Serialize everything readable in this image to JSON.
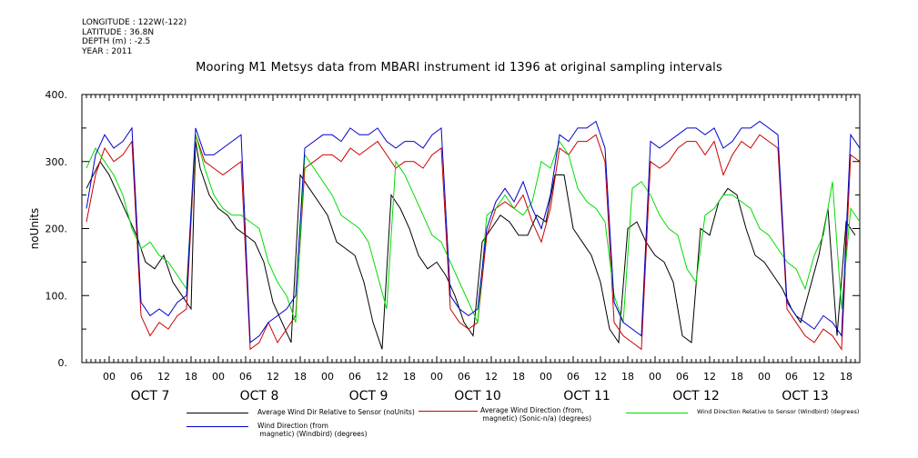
{
  "meta": {
    "longitude": "LONGITUDE : 122W(-122)",
    "latitude": "LATITUDE : 36.8N",
    "depth": "DEPTH (m) : -2.5",
    "year": "YEAR : 2011"
  },
  "chart_data": {
    "type": "line",
    "title": "Mooring M1 Metsys data from MBARI instrument id 1396 at original sampling intervals",
    "ylabel": "noUnits",
    "ylim": [
      0,
      400
    ],
    "yticks": [
      "0.",
      "100.",
      "200.",
      "300.",
      "400."
    ],
    "xlim_hours": [
      -6,
      165
    ],
    "hour_ticks": [
      "00",
      "06",
      "12",
      "18",
      "00",
      "06",
      "12",
      "18",
      "00",
      "06",
      "12",
      "18",
      "00",
      "06",
      "12",
      "18",
      "00",
      "06",
      "12",
      "18",
      "00",
      "06",
      "12",
      "18",
      "00",
      "06",
      "12",
      "18"
    ],
    "day_labels": [
      "OCT  7",
      "OCT  8",
      "OCT  9",
      "OCT 10",
      "OCT 11",
      "OCT 12",
      "OCT 13"
    ],
    "series": [
      {
        "name": "Average Wind Dir Relative to Sensor (noUnits)",
        "color": "#000000",
        "x": [
          -5,
          -2,
          0,
          2,
          4,
          6,
          8,
          10,
          12,
          14,
          16,
          18,
          19,
          20,
          22,
          24,
          26,
          28,
          30,
          32,
          34,
          36,
          38,
          40,
          42,
          44,
          46,
          48,
          50,
          52,
          54,
          56,
          58,
          60,
          62,
          64,
          66,
          68,
          70,
          72,
          74,
          76,
          78,
          80,
          82,
          84,
          86,
          88,
          90,
          92,
          94,
          96,
          98,
          100,
          102,
          104,
          106,
          108,
          110,
          112,
          114,
          116,
          118,
          120,
          122,
          124,
          126,
          128,
          130,
          132,
          134,
          136,
          138,
          140,
          142,
          144,
          146,
          148,
          150,
          152,
          154,
          156,
          158,
          160,
          162,
          164
        ],
        "y": [
          260,
          300,
          280,
          250,
          220,
          190,
          150,
          140,
          160,
          120,
          100,
          80,
          330,
          290,
          250,
          230,
          220,
          200,
          190,
          180,
          150,
          90,
          60,
          30,
          280,
          260,
          240,
          220,
          180,
          170,
          160,
          120,
          60,
          20,
          250,
          230,
          200,
          160,
          140,
          150,
          130,
          100,
          60,
          40,
          180,
          200,
          220,
          210,
          190,
          190,
          220,
          210,
          280,
          280,
          200,
          180,
          160,
          120,
          50,
          30,
          200,
          210,
          180,
          160,
          150,
          120,
          40,
          30,
          200,
          190,
          240,
          260,
          250,
          200,
          160,
          150,
          130,
          110,
          80,
          60,
          110,
          160,
          230,
          40,
          210,
          190
        ]
      },
      {
        "name": "Average Wind Direction (from, magnetic) (Sonic-n/a) (degrees)",
        "color": "#cc0000",
        "x": [
          -5,
          -3,
          -1,
          1,
          3,
          5,
          7,
          9,
          11,
          13,
          15,
          17,
          19,
          21,
          23,
          25,
          27,
          29,
          31,
          33,
          35,
          37,
          39,
          41,
          43,
          45,
          47,
          49,
          51,
          53,
          55,
          57,
          59,
          61,
          63,
          65,
          67,
          69,
          71,
          73,
          75,
          77,
          79,
          81,
          83,
          85,
          87,
          89,
          91,
          93,
          95,
          97,
          99,
          101,
          103,
          105,
          107,
          109,
          111,
          113,
          115,
          117,
          119,
          121,
          123,
          125,
          127,
          129,
          131,
          133,
          135,
          137,
          139,
          141,
          143,
          145,
          147,
          149,
          151,
          153,
          155,
          157,
          159,
          161,
          163,
          165
        ],
        "y": [
          210,
          280,
          320,
          300,
          310,
          330,
          70,
          40,
          60,
          50,
          70,
          80,
          340,
          300,
          290,
          280,
          290,
          300,
          20,
          30,
          60,
          30,
          50,
          70,
          290,
          300,
          310,
          310,
          300,
          320,
          310,
          320,
          330,
          310,
          290,
          300,
          300,
          290,
          310,
          320,
          80,
          60,
          50,
          60,
          190,
          230,
          240,
          230,
          250,
          210,
          180,
          230,
          320,
          310,
          330,
          330,
          340,
          300,
          60,
          40,
          30,
          20,
          300,
          290,
          300,
          320,
          330,
          330,
          310,
          330,
          280,
          310,
          330,
          320,
          340,
          330,
          320,
          80,
          60,
          40,
          30,
          50,
          40,
          20,
          310,
          300
        ]
      },
      {
        "name": "Wind Direction Relative to Sensor (Windbird) (degrees)",
        "color": "#00dd00",
        "x": [
          -5,
          -3,
          -1,
          1,
          3,
          5,
          7,
          9,
          11,
          13,
          15,
          17,
          19,
          21,
          23,
          25,
          27,
          29,
          31,
          33,
          35,
          37,
          39,
          41,
          43,
          45,
          47,
          49,
          51,
          53,
          55,
          57,
          59,
          61,
          63,
          65,
          67,
          69,
          71,
          73,
          75,
          77,
          79,
          81,
          83,
          85,
          87,
          89,
          91,
          93,
          95,
          97,
          99,
          101,
          103,
          105,
          107,
          109,
          111,
          113,
          115,
          117,
          119,
          121,
          123,
          125,
          127,
          129,
          131,
          133,
          135,
          137,
          139,
          141,
          143,
          145,
          147,
          149,
          151,
          153,
          155,
          157,
          159,
          161,
          163,
          165
        ],
        "y": [
          290,
          320,
          300,
          280,
          250,
          200,
          170,
          180,
          160,
          150,
          130,
          110,
          340,
          290,
          250,
          230,
          220,
          220,
          210,
          200,
          150,
          120,
          100,
          60,
          310,
          290,
          270,
          250,
          220,
          210,
          200,
          180,
          130,
          80,
          300,
          280,
          250,
          220,
          190,
          180,
          150,
          120,
          90,
          60,
          220,
          230,
          250,
          230,
          220,
          240,
          300,
          290,
          330,
          310,
          260,
          240,
          230,
          210,
          100,
          60,
          260,
          270,
          250,
          220,
          200,
          190,
          140,
          120,
          220,
          230,
          250,
          250,
          240,
          230,
          200,
          190,
          170,
          150,
          140,
          110,
          160,
          190,
          270,
          80,
          230,
          210
        ]
      },
      {
        "name": "Wind Direction (from, magnetic) (Windbird) (degrees)",
        "color": "#0000cc",
        "x": [
          -5,
          -3,
          -1,
          1,
          3,
          5,
          7,
          9,
          11,
          13,
          15,
          17,
          19,
          21,
          23,
          25,
          27,
          29,
          31,
          33,
          35,
          37,
          39,
          41,
          43,
          45,
          47,
          49,
          51,
          53,
          55,
          57,
          59,
          61,
          63,
          65,
          67,
          69,
          71,
          73,
          75,
          77,
          79,
          81,
          83,
          85,
          87,
          89,
          91,
          93,
          95,
          97,
          99,
          101,
          103,
          105,
          107,
          109,
          111,
          113,
          115,
          117,
          119,
          121,
          123,
          125,
          127,
          129,
          131,
          133,
          135,
          137,
          139,
          141,
          143,
          145,
          147,
          149,
          151,
          153,
          155,
          157,
          159,
          161,
          163,
          165
        ],
        "y": [
          230,
          310,
          340,
          320,
          330,
          350,
          90,
          70,
          80,
          70,
          90,
          100,
          350,
          310,
          310,
          320,
          330,
          340,
          30,
          40,
          60,
          70,
          80,
          100,
          320,
          330,
          340,
          340,
          330,
          350,
          340,
          340,
          350,
          330,
          320,
          330,
          330,
          320,
          340,
          350,
          100,
          80,
          70,
          80,
          200,
          240,
          260,
          240,
          270,
          230,
          200,
          250,
          340,
          330,
          350,
          350,
          360,
          320,
          90,
          60,
          50,
          40,
          330,
          320,
          330,
          340,
          350,
          350,
          340,
          350,
          320,
          330,
          350,
          350,
          360,
          350,
          340,
          90,
          70,
          60,
          50,
          70,
          60,
          40,
          340,
          320
        ]
      }
    ],
    "legend": [
      {
        "label": "Average Wind Dir Relative to Sensor (noUnits)"
      },
      {
        "label": "Average Wind Direction (from,\n magnetic) (Sonic-n/a) (degrees)"
      },
      {
        "label": "Wind Direction Relative to Sensor (Windbird) (degrees)"
      },
      {
        "label": "Wind Direction (from\n magnetic) (Windbird) (degrees)"
      }
    ]
  }
}
